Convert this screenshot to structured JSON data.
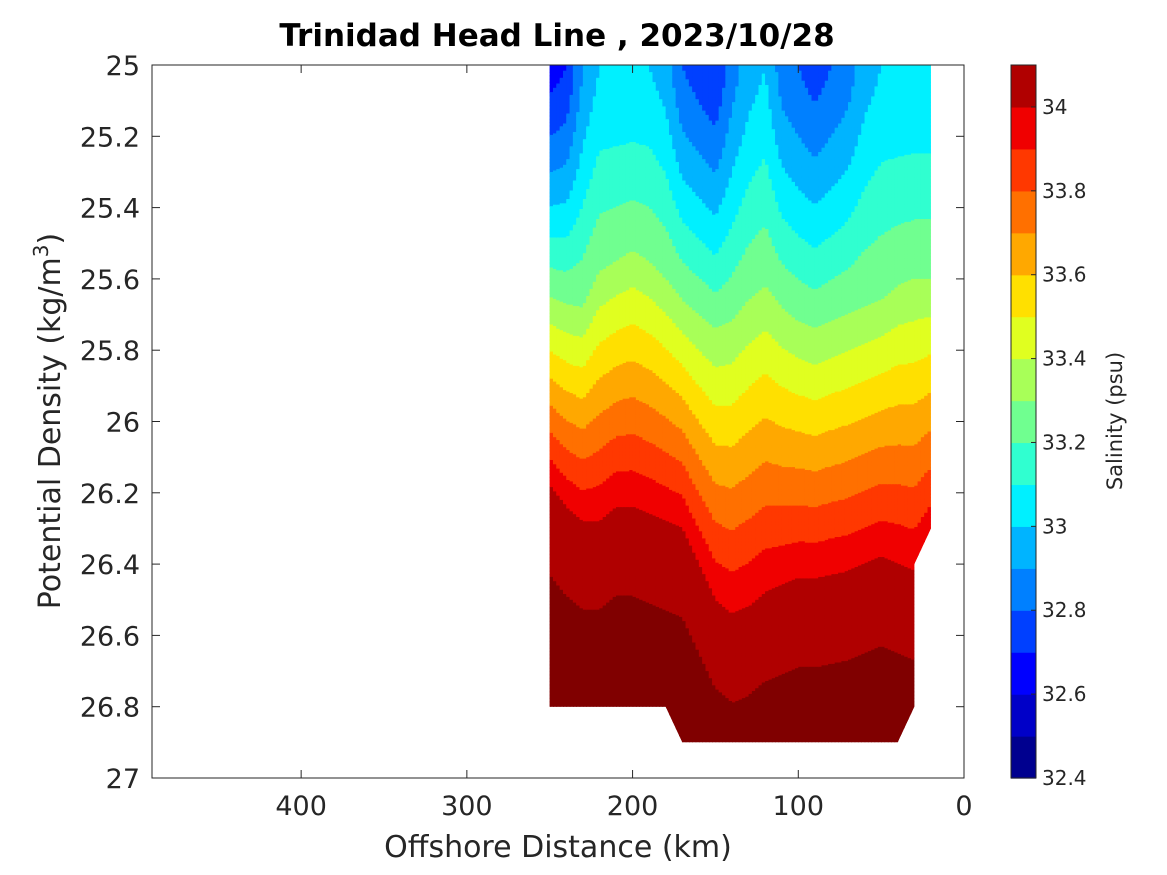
{
  "chart_data": {
    "type": "heatmap",
    "subtype": "filled-contour",
    "title": "Trinidad Head Line , 2023/10/28",
    "xlabel": "Offshore Distance (km)",
    "ylabel": "Potential Density (kg/m3)",
    "ylabel_base": "Potential Density (kg/m",
    "ylabel_sup": "3",
    "ylabel_tail": ")",
    "xlim": [
      490,
      0
    ],
    "x_reversed": true,
    "ylim": [
      25,
      27
    ],
    "y_reversed": true,
    "xticks": [
      400,
      300,
      200,
      100,
      0
    ],
    "yticks": [
      25,
      25.2,
      25.4,
      25.6,
      25.8,
      26,
      26.2,
      26.4,
      26.6,
      26.8,
      27
    ],
    "ytick_labels": [
      "25",
      "25.2",
      "25.4",
      "25.6",
      "25.8",
      "26",
      "26.2",
      "26.4",
      "26.6",
      "26.8",
      "27"
    ],
    "grid": false,
    "colorbar": {
      "label": "Salinity (psu)",
      "colormap": "jet",
      "range": [
        32.4,
        34.1
      ],
      "levels": [
        32.4,
        32.5,
        32.6,
        32.7,
        32.8,
        32.9,
        33.0,
        33.1,
        33.2,
        33.3,
        33.4,
        33.5,
        33.6,
        33.7,
        33.8,
        33.9,
        34.0,
        34.1
      ],
      "colors": [
        "#00008f",
        "#0000c8",
        "#0000ff",
        "#0040ff",
        "#0080ff",
        "#00b4ff",
        "#00f0ff",
        "#30ffd0",
        "#70ff90",
        "#a8ff58",
        "#e0ff20",
        "#ffe000",
        "#ffa800",
        "#ff7000",
        "#ff3800",
        "#f00000",
        "#b00000"
      ],
      "deepest_color": "#800000",
      "ticks": [
        32.4,
        32.6,
        32.8,
        33,
        33.2,
        33.4,
        33.6,
        33.8,
        34
      ],
      "tick_labels": [
        "32.4",
        "32.6",
        "32.8",
        "33",
        "33.2",
        "33.4",
        "33.6",
        "33.8",
        "34"
      ]
    },
    "data_extent": {
      "x_range_km": [
        250,
        20
      ],
      "density_range": [
        25,
        26.9
      ]
    },
    "isopycnal_depth_profiles": {
      "x_km": [
        250,
        240,
        230,
        220,
        210,
        200,
        190,
        180,
        170,
        160,
        150,
        140,
        130,
        120,
        110,
        100,
        90,
        80,
        70,
        60,
        50,
        40,
        30,
        20
      ],
      "surface_salinity_approx": [
        32.65,
        32.7,
        32.9,
        33.0,
        33.0,
        33.0,
        33.0,
        32.95,
        32.8,
        32.75,
        32.7,
        32.85,
        32.95,
        33.0,
        32.85,
        32.8,
        32.75,
        32.8,
        32.85,
        32.95,
        33.0,
        33.0,
        33.0,
        33.0
      ],
      "density_of_33_3_isohaline": [
        25.65,
        25.67,
        25.68,
        25.58,
        25.55,
        25.52,
        25.55,
        25.6,
        25.66,
        25.7,
        25.74,
        25.72,
        25.66,
        25.62,
        25.68,
        25.72,
        25.74,
        25.72,
        25.7,
        25.68,
        25.66,
        25.62,
        25.6,
        25.6
      ],
      "density_of_34_0_isohaline": [
        26.18,
        26.24,
        26.28,
        26.28,
        26.24,
        26.24,
        26.26,
        26.28,
        26.3,
        26.4,
        26.5,
        26.54,
        26.52,
        26.48,
        26.46,
        26.44,
        26.44,
        26.43,
        26.42,
        26.4,
        26.38,
        26.4,
        26.42,
        26.34
      ]
    }
  }
}
